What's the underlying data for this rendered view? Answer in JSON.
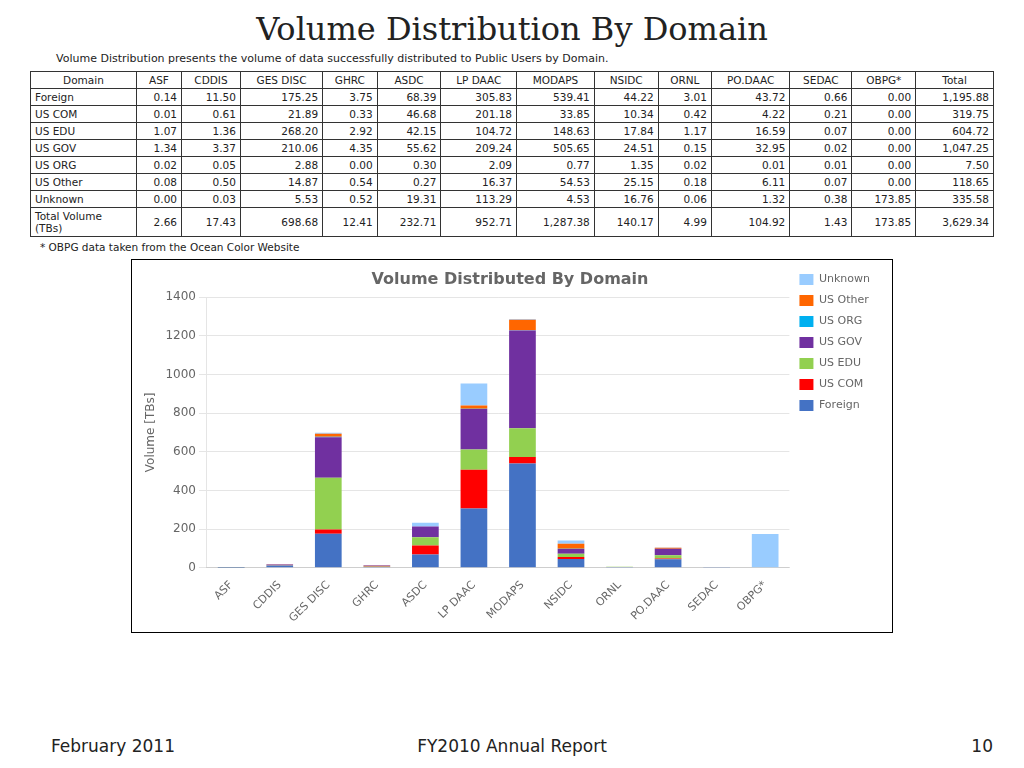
{
  "title": "Volume Distribution By Domain",
  "subtitle": "Volume Distribution presents the volume of data successfully distributed to Public Users by Domain.",
  "table": {
    "columns": [
      "Domain",
      "ASF",
      "CDDIS",
      "GES DISC",
      "GHRC",
      "ASDC",
      "LP DAAC",
      "MODAPS",
      "NSIDC",
      "ORNL",
      "PO.DAAC",
      "SEDAC",
      "OBPG*",
      "Total"
    ],
    "rows": [
      [
        "Foreign",
        "0.14",
        "11.50",
        "175.25",
        "3.75",
        "68.39",
        "305.83",
        "539.41",
        "44.22",
        "3.01",
        "43.72",
        "0.66",
        "0.00",
        "1,195.88"
      ],
      [
        "US COM",
        "0.01",
        "0.61",
        "21.89",
        "0.33",
        "46.68",
        "201.18",
        "33.85",
        "10.34",
        "0.42",
        "4.22",
        "0.21",
        "0.00",
        "319.75"
      ],
      [
        "US EDU",
        "1.07",
        "1.36",
        "268.20",
        "2.92",
        "42.15",
        "104.72",
        "148.63",
        "17.84",
        "1.17",
        "16.59",
        "0.07",
        "0.00",
        "604.72"
      ],
      [
        "US GOV",
        "1.34",
        "3.37",
        "210.06",
        "4.35",
        "55.62",
        "209.24",
        "505.65",
        "24.51",
        "0.15",
        "32.95",
        "0.02",
        "0.00",
        "1,047.25"
      ],
      [
        "US ORG",
        "0.02",
        "0.05",
        "2.88",
        "0.00",
        "0.30",
        "2.09",
        "0.77",
        "1.35",
        "0.02",
        "0.01",
        "0.01",
        "0.00",
        "7.50"
      ],
      [
        "US Other",
        "0.08",
        "0.50",
        "14.87",
        "0.54",
        "0.27",
        "16.37",
        "54.53",
        "25.15",
        "0.18",
        "6.11",
        "0.07",
        "0.00",
        "118.65"
      ],
      [
        "Unknown",
        "0.00",
        "0.03",
        "5.53",
        "0.52",
        "19.31",
        "113.29",
        "4.53",
        "16.76",
        "0.06",
        "1.32",
        "0.38",
        "173.85",
        "335.58"
      ],
      [
        "Total Volume\n(TBs)",
        "2.66",
        "17.43",
        "698.68",
        "12.41",
        "232.71",
        "952.71",
        "1,287.38",
        "140.17",
        "4.99",
        "104.92",
        "1.43",
        "173.85",
        "3,629.34"
      ]
    ]
  },
  "note": "* OBPG data taken from the Ocean Color Website",
  "footer": [
    "February 2011",
    "FY2010 Annual Report",
    "10"
  ],
  "chart_data": {
    "type": "bar",
    "title": "Volume Distributed By Domain",
    "ylabel": "Volume [TBs]",
    "categories": [
      "ASF",
      "CDDIS",
      "GES DISC",
      "GHRC",
      "ASDC",
      "LP DAAC",
      "MODAPS",
      "NSIDC",
      "ORNL",
      "PO.DAAC",
      "SEDAC",
      "OBPG*"
    ],
    "series": [
      {
        "name": "Foreign",
        "color": "#4472C4",
        "values": [
          0.14,
          11.5,
          175.25,
          3.75,
          68.39,
          305.83,
          539.41,
          44.22,
          3.01,
          43.72,
          0.66,
          0.0
        ]
      },
      {
        "name": "US COM",
        "color": "#FF0000",
        "values": [
          0.01,
          0.61,
          21.89,
          0.33,
          46.68,
          201.18,
          33.85,
          10.34,
          0.42,
          4.22,
          0.21,
          0.0
        ]
      },
      {
        "name": "US EDU",
        "color": "#92D050",
        "values": [
          1.07,
          1.36,
          268.2,
          2.92,
          42.15,
          104.72,
          148.63,
          17.84,
          1.17,
          16.59,
          0.07,
          0.0
        ]
      },
      {
        "name": "US GOV",
        "color": "#7030A0",
        "values": [
          1.34,
          3.37,
          210.06,
          4.35,
          55.62,
          209.24,
          505.65,
          24.51,
          0.15,
          32.95,
          0.02,
          0.0
        ]
      },
      {
        "name": "US ORG",
        "color": "#00B0F0",
        "values": [
          0.02,
          0.05,
          2.88,
          0.0,
          0.3,
          2.09,
          0.77,
          1.35,
          0.02,
          0.01,
          0.01,
          0.0
        ]
      },
      {
        "name": "US Other",
        "color": "#FF6600",
        "values": [
          0.08,
          0.5,
          14.87,
          0.54,
          0.27,
          16.37,
          54.53,
          25.15,
          0.18,
          6.11,
          0.07,
          0.0
        ]
      },
      {
        "name": "Unknown",
        "color": "#99CCFF",
        "values": [
          0.0,
          0.03,
          5.53,
          0.52,
          19.31,
          113.29,
          4.53,
          16.76,
          0.06,
          1.32,
          0.38,
          173.85
        ]
      }
    ],
    "stacked": true,
    "ylim": [
      0,
      1400
    ],
    "yticks": [
      0,
      200,
      400,
      600,
      800,
      1000,
      1200,
      1400
    ],
    "grid": true,
    "legend": "upper right"
  }
}
